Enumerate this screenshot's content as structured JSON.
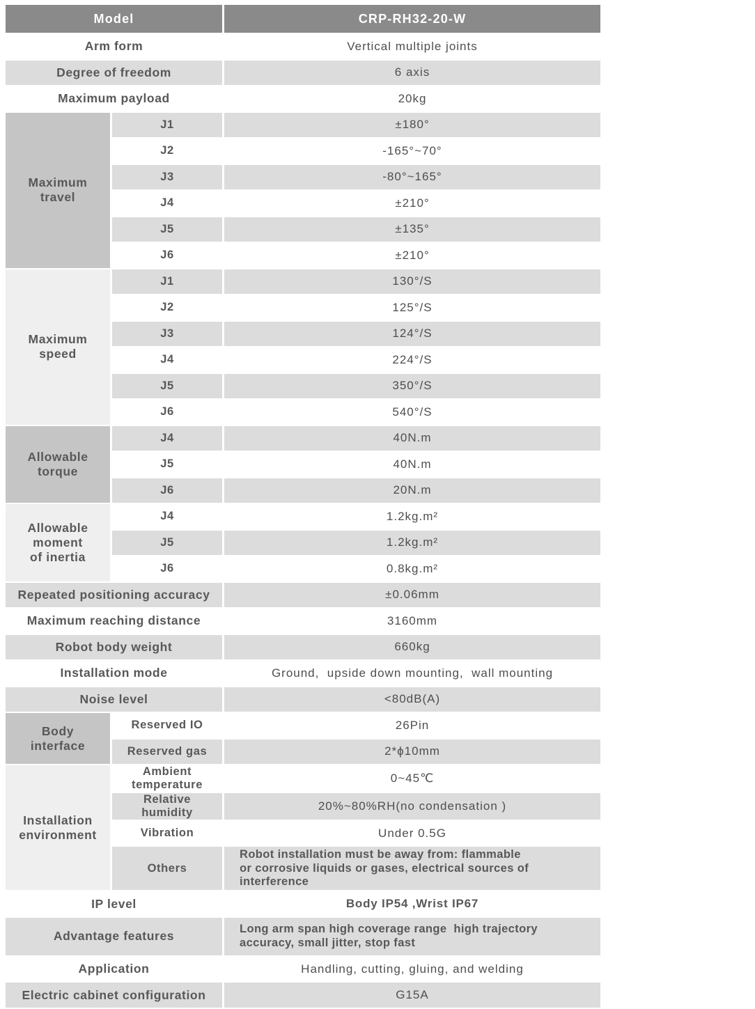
{
  "colors": {
    "header_bg": "#8a8a8a",
    "header_text": "#ffffff",
    "row_stripe": "#dcdcdd",
    "group_dark": "#c5c5c6",
    "group_light": "#efeff0",
    "label_text": "#595757",
    "value_text": "#4f4e4e"
  },
  "header": {
    "label": "Model",
    "value": "CRP-RH32-20-W"
  },
  "general": [
    {
      "label": "Arm form",
      "value": "Vertical multiple joints"
    },
    {
      "label": "Degree of freedom",
      "value": "6 axis"
    },
    {
      "label": "Maximum payload",
      "value": "20kg"
    }
  ],
  "groups": {
    "max_travel": {
      "label": "Maximum\ntravel",
      "joints": [
        {
          "j": "J1",
          "v": "±180°"
        },
        {
          "j": "J2",
          "v": "-165°~70°"
        },
        {
          "j": "J3",
          "v": "-80°~165°"
        },
        {
          "j": "J4",
          "v": "±210°"
        },
        {
          "j": "J5",
          "v": "±135°"
        },
        {
          "j": "J6",
          "v": "±210°"
        }
      ]
    },
    "max_speed": {
      "label": "Maximum\nspeed",
      "joints": [
        {
          "j": "J1",
          "v": "130°/S"
        },
        {
          "j": "J2",
          "v": "125°/S"
        },
        {
          "j": "J3",
          "v": "124°/S"
        },
        {
          "j": "J4",
          "v": "224°/S"
        },
        {
          "j": "J5",
          "v": "350°/S"
        },
        {
          "j": "J6",
          "v": "540°/S"
        }
      ]
    },
    "torque": {
      "label": "Allowable\ntorque",
      "joints": [
        {
          "j": "J4",
          "v": "40N.m"
        },
        {
          "j": "J5",
          "v": "40N.m"
        },
        {
          "j": "J6",
          "v": "20N.m"
        }
      ]
    },
    "inertia": {
      "label": "Allowable\nmoment\nof inertia",
      "joints": [
        {
          "j": "J4",
          "v": "1.2kg.m²"
        },
        {
          "j": "J5",
          "v": "1.2kg.m²"
        },
        {
          "j": "J6",
          "v": "0.8kg.m²"
        }
      ]
    }
  },
  "mid": [
    {
      "label": "Repeated positioning accuracy",
      "value": "±0.06mm"
    },
    {
      "label": "Maximum reaching distance",
      "value": "3160mm"
    },
    {
      "label": "Robot body weight",
      "value": "660kg"
    },
    {
      "label": "Installation mode",
      "value": "Ground,  upside down mounting,  wall mounting"
    },
    {
      "label": "Noise level",
      "value": "<80dB(A)"
    }
  ],
  "body_interface": {
    "label": "Body\ninterface",
    "rows": [
      {
        "name": "Reserved IO",
        "value": "26Pin"
      },
      {
        "name": "Reserved gas",
        "value": "2*ϕ10mm"
      }
    ]
  },
  "environment": {
    "label": "Installation\nenvironment",
    "rows": [
      {
        "name": "Ambient\ntemperature",
        "value": "0~45℃"
      },
      {
        "name": "Relative\nhumidity",
        "value": "20%~80%RH(no condensation )"
      },
      {
        "name": "Vibration",
        "value": "Under 0.5G"
      },
      {
        "name": "Others",
        "value": "Robot installation must be away from: flammable\nor corrosive liquids or gases, electrical sources of\ninterference"
      }
    ]
  },
  "bottom": [
    {
      "label": "IP level",
      "value": "Body IP54 ,Wrist IP67"
    },
    {
      "label": "Advantage features",
      "value": "Long arm span high coverage range  high trajectory\naccuracy, small jitter, stop fast"
    },
    {
      "label": "Application",
      "value": "Handling, cutting, gluing, and welding"
    },
    {
      "label": "Electric cabinet configuration",
      "value": "G15A"
    }
  ]
}
